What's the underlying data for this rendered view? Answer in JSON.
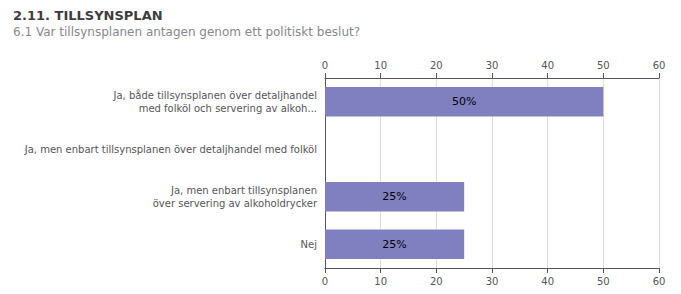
{
  "chart_data": {
    "type": "bar",
    "orientation": "horizontal",
    "title": "2.11. TILLSYNSPLAN",
    "subtitle": "6.1 Var tillsynsplanen antagen genom ett politiskt beslut?",
    "categories": [
      "Ja, både tillsynsplanen över detaljhandel\nmed folköl och servering av alkoh...",
      "Ja, men enbart tillsynsplanen över detaljhandel med folköl",
      "Ja, men enbart tillsynsplanen\növer servering av alkoholdrycker",
      "Nej"
    ],
    "values": [
      50,
      0,
      25,
      25
    ],
    "value_labels": [
      "50%",
      null,
      "25%",
      "25%"
    ],
    "data_labels": true,
    "color": "#8080c0",
    "xlim": [
      0,
      60
    ],
    "xticks": [
      0,
      10,
      20,
      30,
      40,
      50,
      60
    ],
    "grid": true
  }
}
